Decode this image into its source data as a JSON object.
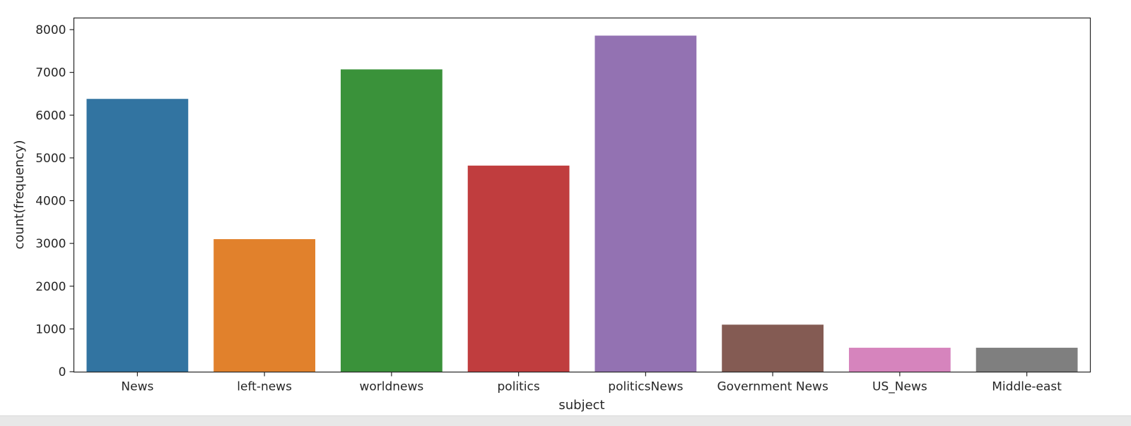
{
  "chart_data": {
    "type": "bar",
    "categories": [
      "News",
      "left-news",
      "worldnews",
      "politics",
      "politicsNews",
      "Government News",
      "US_News",
      "Middle-east"
    ],
    "values": [
      6380,
      3100,
      7070,
      4820,
      7860,
      1100,
      560,
      560
    ],
    "colors": [
      "#3274a1",
      "#e1812c",
      "#3a923a",
      "#c03d3e",
      "#9372b2",
      "#845b53",
      "#d684bd",
      "#7f7f7f"
    ],
    "title": "",
    "xlabel": "subject",
    "ylabel": "count(frequency)",
    "ylim": [
      0,
      8250
    ],
    "yticks": [
      0,
      1000,
      2000,
      3000,
      4000,
      5000,
      6000,
      7000,
      8000
    ],
    "grid": false
  }
}
